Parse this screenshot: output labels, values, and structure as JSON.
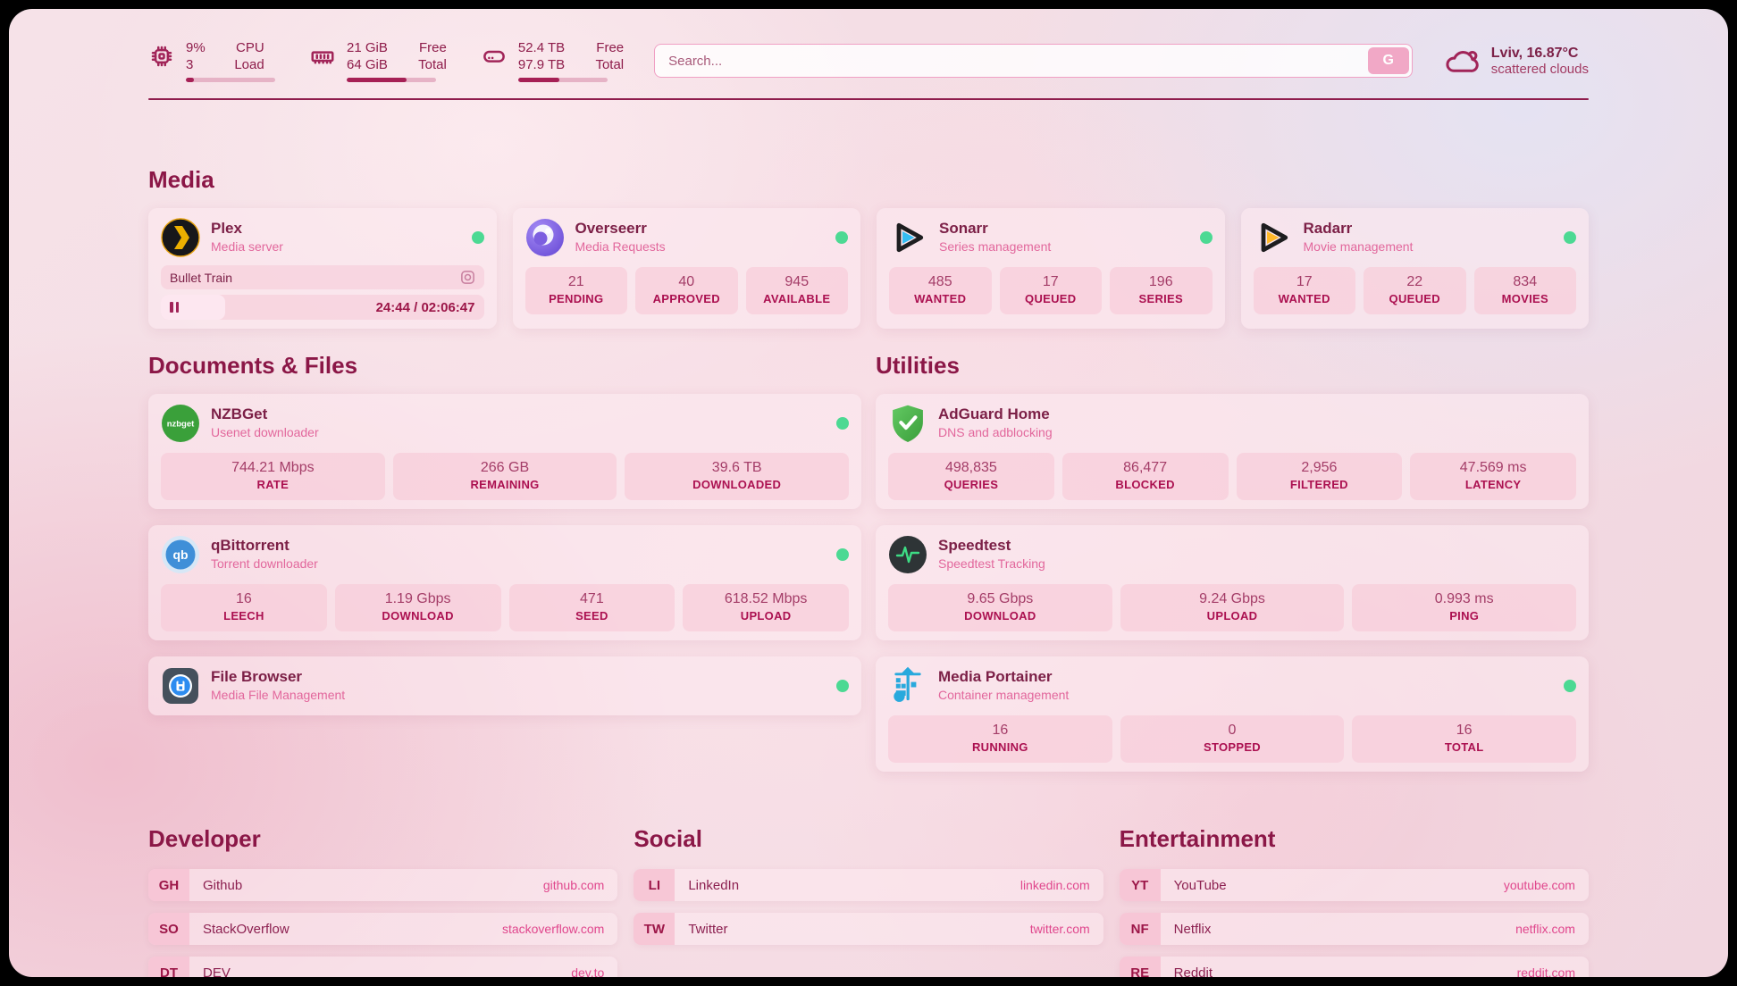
{
  "header": {
    "cpu": {
      "v1": "9%",
      "l1": "CPU",
      "v2": "3",
      "l2": "Load",
      "percent": 9
    },
    "ram": {
      "v1": "21 GiB",
      "l1": "Free",
      "v2": "64 GiB",
      "l2": "Total",
      "percent": 67
    },
    "disk": {
      "v1": "52.4 TB",
      "l1": "Free",
      "v2": "97.9 TB",
      "l2": "Total",
      "percent": 46
    },
    "search": {
      "placeholder": "Search...",
      "button_label": "G"
    },
    "weather": {
      "location": "Lviv, 16.87°C",
      "condition": "scattered clouds"
    }
  },
  "media": {
    "title": "Media",
    "plex": {
      "name": "Plex",
      "desc": "Media server",
      "now_playing_title": "Bullet Train",
      "time": "24:44 / 02:06:47",
      "progress_percent": 20
    },
    "overseerr": {
      "name": "Overseerr",
      "desc": "Media Requests",
      "stats": [
        {
          "value": "21",
          "label": "PENDING"
        },
        {
          "value": "40",
          "label": "APPROVED"
        },
        {
          "value": "945",
          "label": "AVAILABLE"
        }
      ]
    },
    "sonarr": {
      "name": "Sonarr",
      "desc": "Series management",
      "stats": [
        {
          "value": "485",
          "label": "WANTED"
        },
        {
          "value": "17",
          "label": "QUEUED"
        },
        {
          "value": "196",
          "label": "SERIES"
        }
      ]
    },
    "radarr": {
      "name": "Radarr",
      "desc": "Movie management",
      "stats": [
        {
          "value": "17",
          "label": "WANTED"
        },
        {
          "value": "22",
          "label": "QUEUED"
        },
        {
          "value": "834",
          "label": "MOVIES"
        }
      ]
    }
  },
  "documents": {
    "title": "Documents & Files",
    "nzbget": {
      "name": "NZBGet",
      "desc": "Usenet downloader",
      "stats": [
        {
          "value": "744.21 Mbps",
          "label": "RATE"
        },
        {
          "value": "266 GB",
          "label": "REMAINING"
        },
        {
          "value": "39.6 TB",
          "label": "DOWNLOADED"
        }
      ]
    },
    "qbittorrent": {
      "name": "qBittorrent",
      "desc": "Torrent downloader",
      "stats": [
        {
          "value": "16",
          "label": "LEECH"
        },
        {
          "value": "1.19 Gbps",
          "label": "DOWNLOAD"
        },
        {
          "value": "471",
          "label": "SEED"
        },
        {
          "value": "618.52 Mbps",
          "label": "UPLOAD"
        }
      ]
    },
    "filebrowser": {
      "name": "File Browser",
      "desc": "Media File Management"
    }
  },
  "utilities": {
    "title": "Utilities",
    "adguard": {
      "name": "AdGuard Home",
      "desc": "DNS and adblocking",
      "stats": [
        {
          "value": "498,835",
          "label": "QUERIES"
        },
        {
          "value": "86,477",
          "label": "BLOCKED"
        },
        {
          "value": "2,956",
          "label": "FILTERED"
        },
        {
          "value": "47.569 ms",
          "label": "LATENCY"
        }
      ]
    },
    "speedtest": {
      "name": "Speedtest",
      "desc": "Speedtest Tracking",
      "stats": [
        {
          "value": "9.65 Gbps",
          "label": "DOWNLOAD"
        },
        {
          "value": "9.24 Gbps",
          "label": "UPLOAD"
        },
        {
          "value": "0.993 ms",
          "label": "PING"
        }
      ]
    },
    "portainer": {
      "name": "Media Portainer",
      "desc": "Container management",
      "stats": [
        {
          "value": "16",
          "label": "RUNNING"
        },
        {
          "value": "0",
          "label": "STOPPED"
        },
        {
          "value": "16",
          "label": "TOTAL"
        }
      ]
    }
  },
  "bookmarks": {
    "developer": {
      "title": "Developer",
      "items": [
        {
          "abbr": "GH",
          "name": "Github",
          "url": "github.com"
        },
        {
          "abbr": "SO",
          "name": "StackOverflow",
          "url": "stackoverflow.com"
        },
        {
          "abbr": "DT",
          "name": "DEV",
          "url": "dev.to"
        }
      ]
    },
    "social": {
      "title": "Social",
      "items": [
        {
          "abbr": "LI",
          "name": "LinkedIn",
          "url": "linkedin.com"
        },
        {
          "abbr": "TW",
          "name": "Twitter",
          "url": "twitter.com"
        }
      ]
    },
    "entertainment": {
      "title": "Entertainment",
      "items": [
        {
          "abbr": "YT",
          "name": "YouTube",
          "url": "youtube.com"
        },
        {
          "abbr": "NF",
          "name": "Netflix",
          "url": "netflix.com"
        },
        {
          "abbr": "RE",
          "name": "Reddit",
          "url": "reddit.com"
        }
      ]
    }
  },
  "colors": {
    "accent": "#8b1747",
    "online": "#4cd993"
  }
}
